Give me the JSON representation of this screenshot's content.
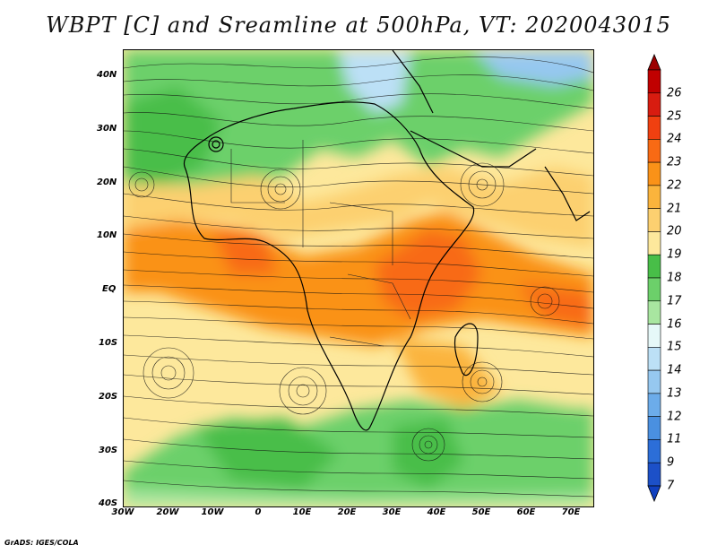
{
  "title": "WBPT [C] and Sreamline at 500hPa, VT: 2020043015",
  "lat_axis": [
    "40N",
    "30N",
    "20N",
    "10N",
    "EQ",
    "10S",
    "20S",
    "30S",
    "40S"
  ],
  "lon_axis": [
    "30W",
    "20W",
    "10W",
    "0",
    "10E",
    "20E",
    "30E",
    "40E",
    "50E",
    "60E",
    "70E"
  ],
  "colorbar": {
    "labels": [
      "26",
      "25",
      "24",
      "23",
      "22",
      "21",
      "20",
      "19",
      "18",
      "17",
      "16",
      "15",
      "14",
      "13",
      "12",
      "11",
      "9",
      "7"
    ],
    "colors": [
      "#c00000",
      "#d81c10",
      "#f04010",
      "#f86a14",
      "#fa9218",
      "#fbb43c",
      "#fcd070",
      "#fde89c",
      "#48be48",
      "#6cd06a",
      "#a8e6a0",
      "#e6f8f8",
      "#bce0f6",
      "#96c8f0",
      "#6cacea",
      "#4a90e0",
      "#2c6ed8",
      "#1c50c8"
    ],
    "top_arrow_color": "#9c0000",
    "bottom_arrow_color": "#1040c0"
  },
  "credit": "GrADS: IGES/COLA"
}
